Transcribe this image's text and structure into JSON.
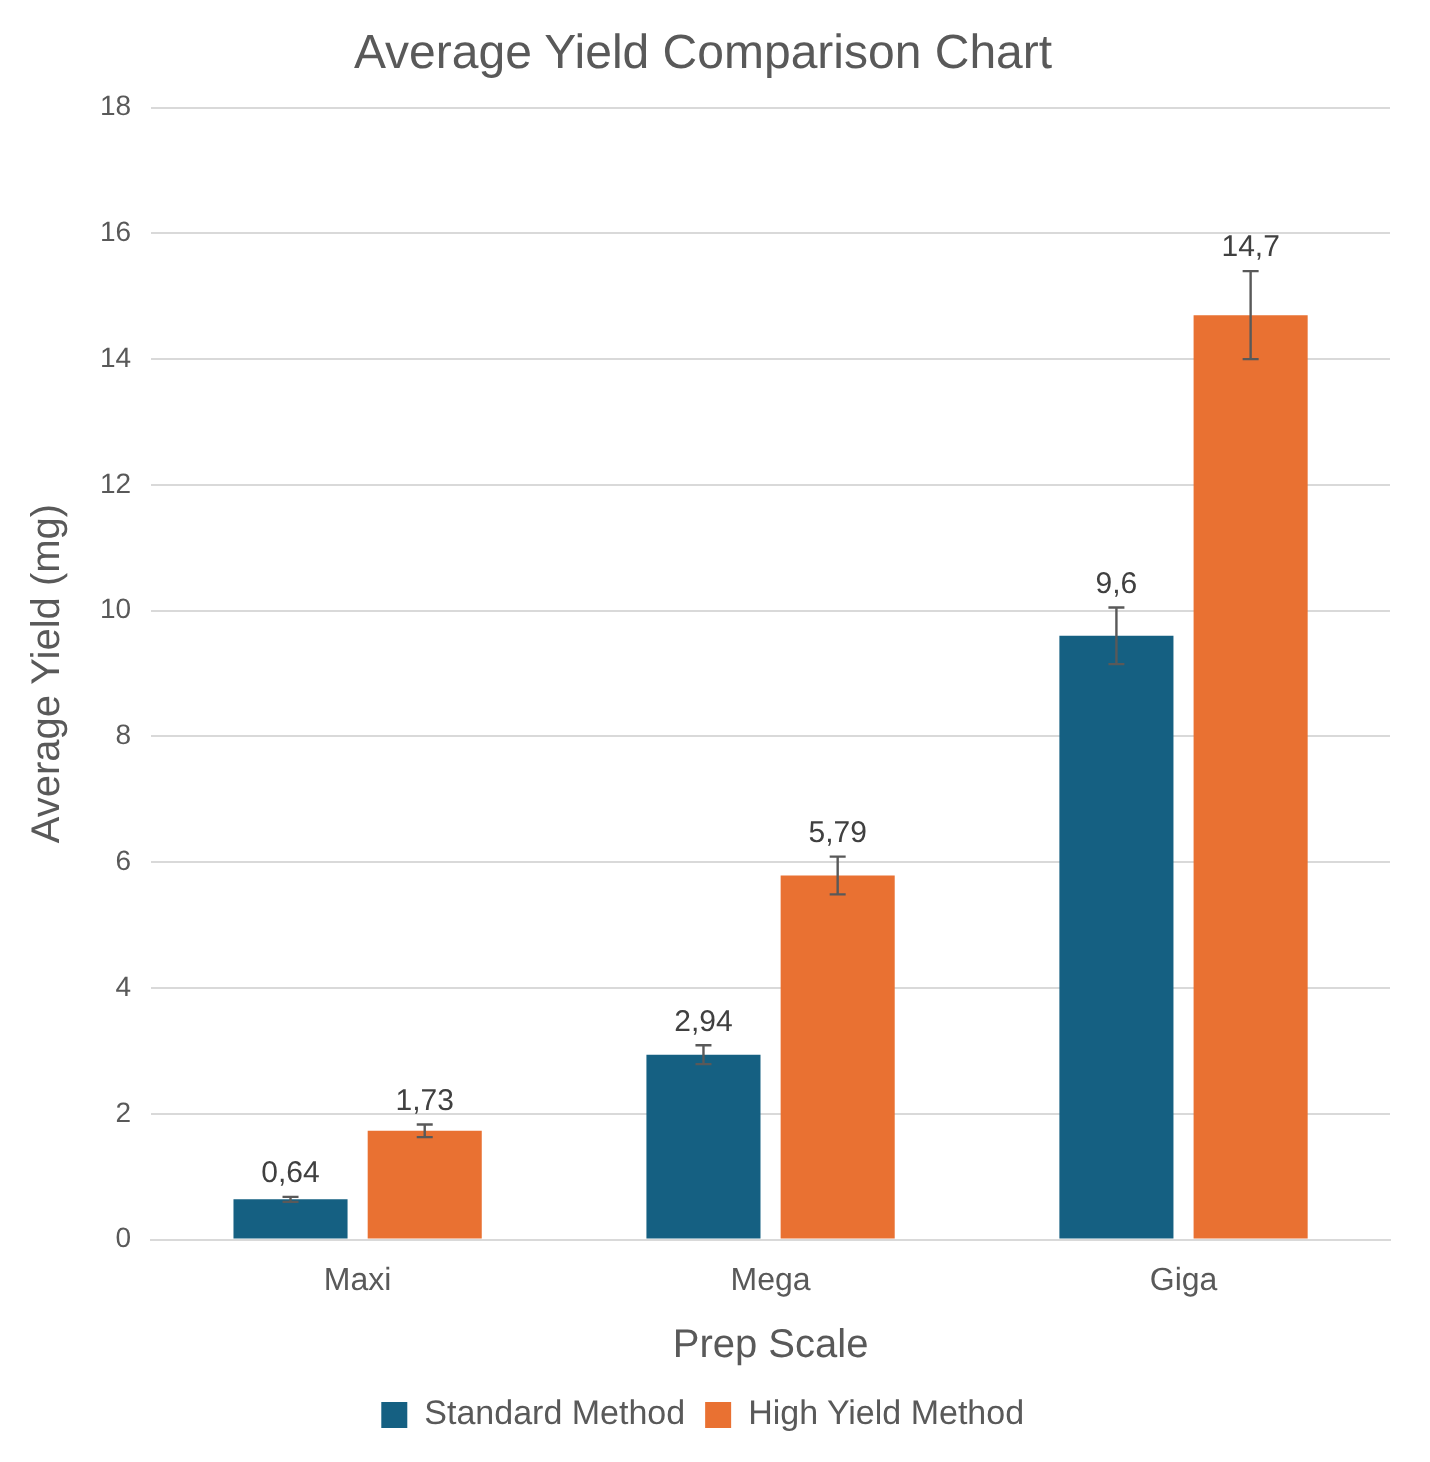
{
  "chart_data": {
    "type": "bar",
    "title": "Average Yield Comparison Chart",
    "xlabel": "Prep Scale",
    "ylabel": "Average Yield (mg)",
    "categories": [
      "Maxi",
      "Mega",
      "Giga"
    ],
    "series": [
      {
        "name": "Standard Method",
        "color": "#156082",
        "values": [
          0.64,
          2.94,
          9.6
        ],
        "errors": [
          0.04,
          0.15,
          0.45
        ],
        "value_labels": [
          "0,64",
          "2,94",
          "9,6"
        ]
      },
      {
        "name": "High Yield Method",
        "color": "#e97132",
        "values": [
          1.73,
          5.79,
          14.7
        ],
        "errors": [
          0.1,
          0.3,
          0.7
        ],
        "value_labels": [
          "1,73",
          "5,79",
          "14,7"
        ]
      }
    ],
    "ylim": [
      0,
      18
    ],
    "yticks": [
      0,
      2,
      4,
      6,
      8,
      10,
      12,
      14,
      16,
      18
    ],
    "grid": "y",
    "legend": "bottom"
  }
}
